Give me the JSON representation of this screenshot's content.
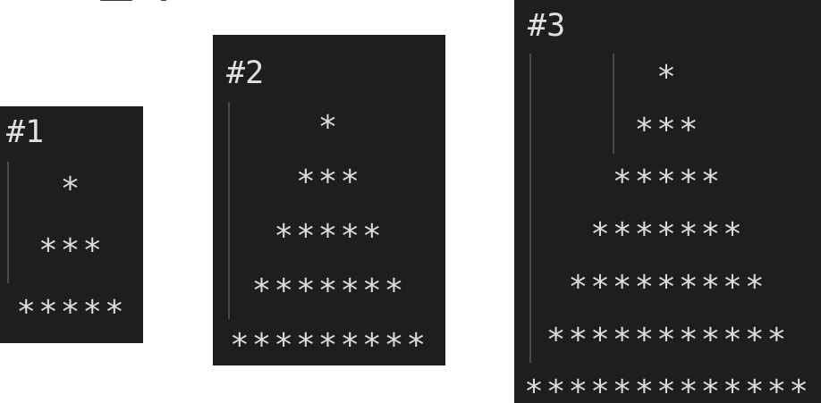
{
  "panels": [
    {
      "label": "#1",
      "rows": [
        "*",
        "***",
        "*****"
      ]
    },
    {
      "label": "#2",
      "rows": [
        "*",
        "***",
        "*****",
        "*******",
        "*********"
      ]
    },
    {
      "label": "#3",
      "rows": [
        "*",
        "***",
        "*****",
        "*******",
        "*********",
        "***********",
        "*************"
      ]
    }
  ],
  "colors": {
    "panel_bg": "#1e1e1e",
    "text": "#dcdcdc",
    "guide": "#4a4a4a",
    "page_bg": "#ffffff"
  }
}
